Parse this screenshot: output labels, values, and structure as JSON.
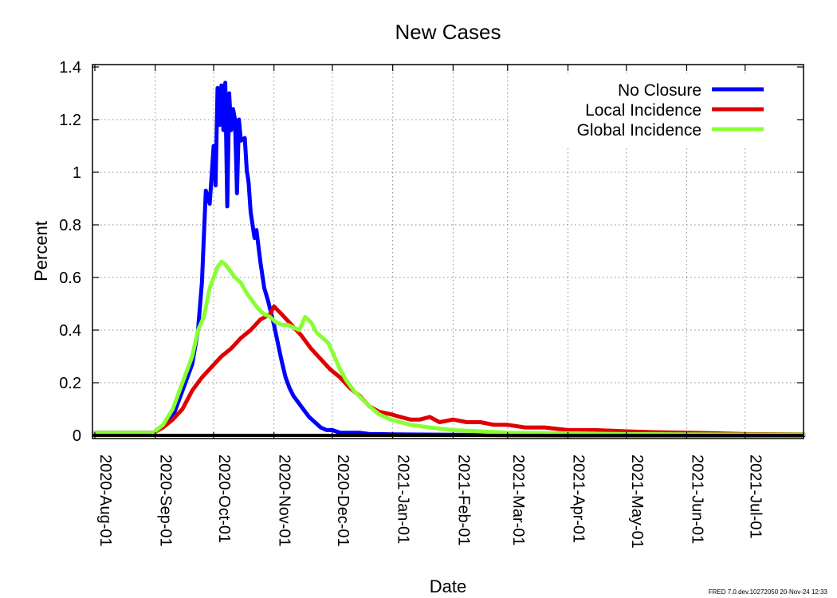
{
  "chart_data": {
    "type": "line",
    "title": "New Cases",
    "xlabel": "Date",
    "ylabel": "Percent",
    "ylim": [
      0,
      1.4
    ],
    "xlim": [
      "2020-08-01",
      "2021-07-31"
    ],
    "yticks": [
      "0",
      "0.2",
      "0.4",
      "0.6",
      "0.8",
      "1",
      "1.2",
      "1.4"
    ],
    "yticks_values": [
      0,
      0.2,
      0.4,
      0.6,
      0.8,
      1.0,
      1.2,
      1.4
    ],
    "xticks": [
      "2020-Aug-01",
      "2020-Sep-01",
      "2020-Oct-01",
      "2020-Nov-01",
      "2020-Dec-01",
      "2021-Jan-01",
      "2021-Feb-01",
      "2021-Mar-01",
      "2021-Apr-01",
      "2021-May-01",
      "2021-Jun-01",
      "2021-Jul-01"
    ],
    "xticks_dates": [
      "2020-08-01",
      "2020-09-01",
      "2020-10-01",
      "2020-11-01",
      "2020-12-01",
      "2021-01-01",
      "2021-02-01",
      "2021-03-01",
      "2021-04-01",
      "2021-05-01",
      "2021-06-01",
      "2021-07-01"
    ],
    "grid": true,
    "legend_position": "top-right",
    "series": [
      {
        "name": "No Closure",
        "color": "#0000ff",
        "x": [
          "2020-08-01",
          "2020-08-15",
          "2020-08-31",
          "2020-09-05",
          "2020-09-10",
          "2020-09-15",
          "2020-09-20",
          "2020-09-23",
          "2020-09-25",
          "2020-09-27",
          "2020-09-29",
          "2020-10-01",
          "2020-10-02",
          "2020-10-03",
          "2020-10-04",
          "2020-10-05",
          "2020-10-06",
          "2020-10-07",
          "2020-10-08",
          "2020-10-09",
          "2020-10-10",
          "2020-10-11",
          "2020-10-12",
          "2020-10-13",
          "2020-10-14",
          "2020-10-15",
          "2020-10-17",
          "2020-10-18",
          "2020-10-19",
          "2020-10-20",
          "2020-10-22",
          "2020-10-23",
          "2020-10-25",
          "2020-10-27",
          "2020-10-29",
          "2020-11-01",
          "2020-11-03",
          "2020-11-05",
          "2020-11-07",
          "2020-11-09",
          "2020-11-11",
          "2020-11-13",
          "2020-11-16",
          "2020-11-19",
          "2020-11-22",
          "2020-11-25",
          "2020-11-28",
          "2020-12-01",
          "2020-12-05",
          "2020-12-10",
          "2020-12-15",
          "2020-12-20",
          "2020-12-25",
          "2021-01-01",
          "2021-01-15",
          "2021-02-01",
          "2021-03-01",
          "2021-04-01",
          "2021-05-01",
          "2021-06-01",
          "2021-07-01",
          "2021-07-31"
        ],
        "values": [
          0.01,
          0.01,
          0.01,
          0.03,
          0.07,
          0.17,
          0.27,
          0.4,
          0.58,
          0.93,
          0.88,
          1.1,
          0.95,
          1.32,
          1.18,
          1.33,
          1.16,
          1.34,
          0.87,
          1.3,
          1.16,
          1.24,
          1.2,
          0.92,
          1.2,
          1.12,
          1.13,
          1.01,
          0.96,
          0.85,
          0.75,
          0.78,
          0.66,
          0.56,
          0.51,
          0.42,
          0.35,
          0.28,
          0.22,
          0.18,
          0.15,
          0.13,
          0.1,
          0.07,
          0.05,
          0.03,
          0.02,
          0.02,
          0.01,
          0.01,
          0.01,
          0.005,
          0.005,
          0.004,
          0.003,
          0.002,
          0.001,
          0.0,
          0.0,
          0.0,
          0.0,
          0.0
        ]
      },
      {
        "name": "Local Incidence",
        "color": "#e00000",
        "x": [
          "2020-08-01",
          "2020-08-15",
          "2020-08-31",
          "2020-09-05",
          "2020-09-10",
          "2020-09-15",
          "2020-09-20",
          "2020-09-25",
          "2020-09-30",
          "2020-10-05",
          "2020-10-10",
          "2020-10-15",
          "2020-10-20",
          "2020-10-25",
          "2020-10-30",
          "2020-11-01",
          "2020-11-05",
          "2020-11-10",
          "2020-11-15",
          "2020-11-20",
          "2020-11-25",
          "2020-11-30",
          "2020-12-05",
          "2020-12-10",
          "2020-12-15",
          "2020-12-20",
          "2020-12-25",
          "2020-12-31",
          "2021-01-05",
          "2021-01-10",
          "2021-01-15",
          "2021-01-20",
          "2021-01-25",
          "2021-02-01",
          "2021-02-08",
          "2021-02-15",
          "2021-02-22",
          "2021-03-01",
          "2021-03-10",
          "2021-03-20",
          "2021-04-01",
          "2021-04-15",
          "2021-05-01",
          "2021-05-15",
          "2021-06-01",
          "2021-06-15",
          "2021-07-01",
          "2021-07-31"
        ],
        "values": [
          0.01,
          0.01,
          0.01,
          0.03,
          0.06,
          0.1,
          0.17,
          0.22,
          0.26,
          0.3,
          0.33,
          0.37,
          0.4,
          0.44,
          0.46,
          0.49,
          0.46,
          0.42,
          0.38,
          0.33,
          0.29,
          0.25,
          0.22,
          0.18,
          0.15,
          0.11,
          0.09,
          0.08,
          0.07,
          0.06,
          0.06,
          0.07,
          0.05,
          0.06,
          0.05,
          0.05,
          0.04,
          0.04,
          0.03,
          0.03,
          0.02,
          0.02,
          0.015,
          0.012,
          0.01,
          0.008,
          0.005,
          0.004
        ]
      },
      {
        "name": "Global Incidence",
        "color": "#88ff33",
        "x": [
          "2020-08-01",
          "2020-08-15",
          "2020-08-31",
          "2020-09-05",
          "2020-09-10",
          "2020-09-15",
          "2020-09-20",
          "2020-09-23",
          "2020-09-26",
          "2020-09-29",
          "2020-10-01",
          "2020-10-03",
          "2020-10-05",
          "2020-10-07",
          "2020-10-09",
          "2020-10-12",
          "2020-10-15",
          "2020-10-18",
          "2020-10-21",
          "2020-10-24",
          "2020-10-27",
          "2020-10-30",
          "2020-11-02",
          "2020-11-05",
          "2020-11-08",
          "2020-11-11",
          "2020-11-14",
          "2020-11-17",
          "2020-11-20",
          "2020-11-23",
          "2020-11-26",
          "2020-11-29",
          "2020-12-02",
          "2020-12-05",
          "2020-12-08",
          "2020-12-12",
          "2020-12-16",
          "2020-12-20",
          "2020-12-25",
          "2020-12-31",
          "2021-01-10",
          "2021-01-20",
          "2021-02-01",
          "2021-02-15",
          "2021-03-01",
          "2021-04-01",
          "2021-05-01",
          "2021-06-01",
          "2021-07-01",
          "2021-07-31"
        ],
        "values": [
          0.01,
          0.01,
          0.01,
          0.04,
          0.1,
          0.2,
          0.3,
          0.4,
          0.45,
          0.56,
          0.6,
          0.64,
          0.66,
          0.65,
          0.63,
          0.6,
          0.58,
          0.54,
          0.51,
          0.48,
          0.46,
          0.45,
          0.43,
          0.42,
          0.42,
          0.41,
          0.4,
          0.45,
          0.43,
          0.39,
          0.37,
          0.35,
          0.3,
          0.25,
          0.21,
          0.17,
          0.14,
          0.11,
          0.08,
          0.06,
          0.04,
          0.03,
          0.02,
          0.015,
          0.01,
          0.008,
          0.005,
          0.004,
          0.003,
          0.003
        ]
      }
    ]
  },
  "footer": "FRED 7.0.dev.10272050 20-Nov-24 12:33"
}
